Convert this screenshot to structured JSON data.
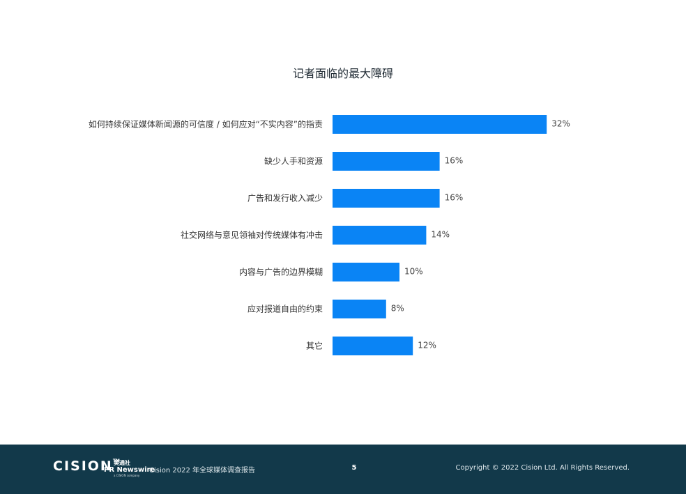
{
  "chart_data": {
    "type": "bar",
    "orientation": "horizontal",
    "title": "记者面临的最大障碍",
    "categories": [
      "如何持续保证媒体新闻源的可信度 / 如何应对“不实内容”的指责",
      "缺少人手和资源",
      "广告和发行收入减少",
      "社交网络与意见领袖对传统媒体有冲击",
      "内容与广告的边界模糊",
      "应对报道自由的约束",
      "其它"
    ],
    "values": [
      32,
      16,
      16,
      14,
      10,
      8,
      12
    ],
    "value_labels": [
      "32%",
      "16%",
      "16%",
      "14%",
      "10%",
      "8%",
      "12%"
    ],
    "unit": "%",
    "bar_color": "#0a84f5",
    "grid": false
  },
  "footer": {
    "logo_cision": "CISION",
    "logo_prn_cn": "美通社",
    "logo_prn_en": "PR Newswire",
    "logo_prn_sub": "a CISION company",
    "report_title": "Cision 2022 年全球媒体调查报告",
    "page_number": "5",
    "copyright": "Copyright © 2022 Cision Ltd. All Rights Reserved."
  },
  "colors": {
    "footer_bg": "#12394a"
  }
}
